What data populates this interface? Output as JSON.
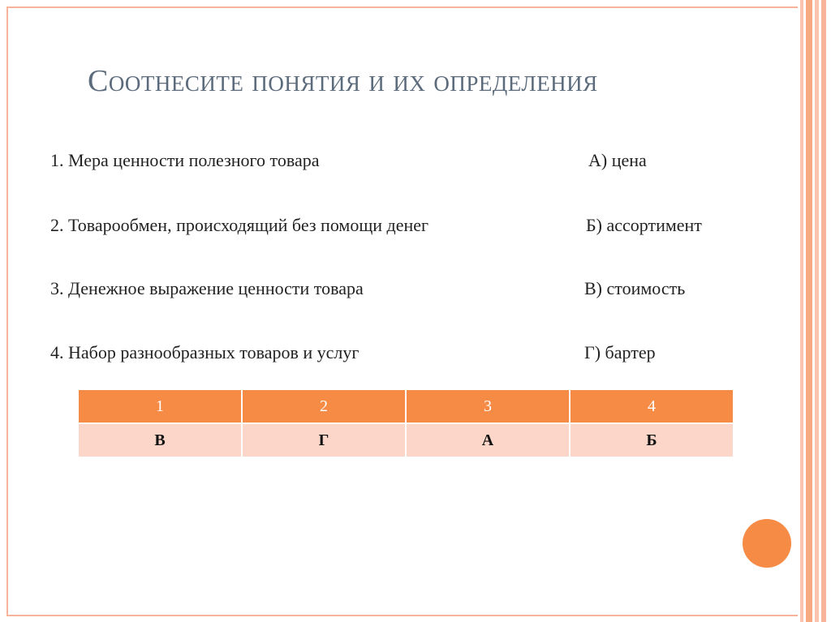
{
  "title": "Соотнесите понятия и их определения",
  "items": [
    {
      "term": "1. Мера ценности полезного товара",
      "definition": "А) цена"
    },
    {
      "term": "2. Товарообмен, происходящий без помощи денег",
      "definition": "Б) ассортимент"
    },
    {
      "term": "3. Денежное выражение ценности товара",
      "definition": "В) стоимость"
    },
    {
      "term": "4. Набор разнообразных товаров и услуг",
      "definition": "Г) бартер"
    }
  ],
  "table": {
    "header": [
      "1",
      "2",
      "3",
      "4"
    ],
    "rows": [
      [
        "В",
        "Г",
        "А",
        "Б"
      ]
    ]
  }
}
